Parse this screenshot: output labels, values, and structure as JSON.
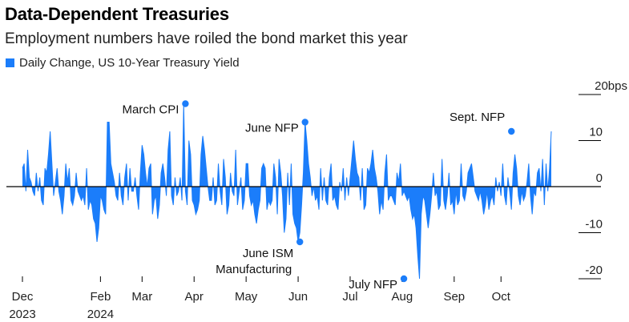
{
  "header": {
    "title": "Data-Dependent Treasuries",
    "subtitle": "Employment numbers have roiled the bond market this year"
  },
  "colors": {
    "series": "#1b7dfa",
    "axis": "#000000",
    "grid": "#000000",
    "text": "#222222"
  },
  "chart_data": {
    "type": "area",
    "series": [
      {
        "name": "Daily Change, US 10-Year Treasury Yield",
        "x_start": "2023-12-01",
        "y": [
          4,
          5,
          -1,
          8,
          2,
          1,
          -1,
          -2,
          3,
          -1,
          2,
          -3,
          -4,
          4,
          3,
          7,
          12,
          5,
          -2,
          1,
          4,
          -1,
          -3,
          -6,
          -2,
          5,
          1,
          4,
          -3,
          -4,
          -2,
          3,
          -1,
          -2,
          -3,
          -2,
          -4,
          4,
          -5,
          -3,
          -4,
          -7,
          -8,
          -12,
          -9,
          -2,
          -3,
          -5,
          -6,
          14,
          14,
          5,
          3,
          1,
          -2,
          -3,
          3,
          -2,
          -4,
          2,
          5,
          -3,
          4,
          -1,
          -1,
          2,
          -2,
          -5,
          3,
          9,
          7,
          3,
          0,
          4,
          5,
          -6,
          -3,
          -2,
          -7,
          -4,
          3,
          5,
          2,
          -2,
          8,
          12,
          -2,
          -4,
          2,
          -2,
          -1,
          2,
          -3,
          18,
          -1,
          -4,
          10,
          7,
          -3,
          -4,
          -6,
          -5,
          -3,
          7,
          11,
          8,
          4,
          0,
          -3,
          -3,
          2,
          -4,
          -3,
          5,
          -1,
          -4,
          6,
          2,
          -6,
          -4,
          3,
          -1,
          -2,
          8,
          -4,
          -1,
          2,
          -5,
          -3,
          5,
          5,
          -2,
          -4,
          -3,
          -6,
          -8,
          -5,
          -3,
          4,
          5,
          4,
          -5,
          -3,
          -4,
          -3,
          5,
          2,
          -6,
          6,
          3,
          -2,
          -10,
          -7,
          3,
          -4,
          5,
          -6,
          -8,
          -9,
          -12,
          -10,
          -4,
          3,
          14,
          10,
          5,
          2,
          -2,
          0,
          -3,
          -2,
          -5,
          4,
          -3,
          2,
          -3,
          -4,
          2,
          5,
          -3,
          -2,
          -4,
          -5,
          1,
          -1,
          4,
          -3,
          2,
          -2,
          2,
          6,
          10,
          6,
          3,
          2,
          -3,
          4,
          -5,
          -4,
          4,
          3,
          5,
          8,
          4,
          2,
          -1,
          -6,
          -3,
          -5,
          3,
          7,
          -3,
          -2,
          -2,
          -3,
          -4,
          3,
          1,
          5,
          -2,
          -1,
          -2,
          -3,
          -2,
          -5,
          -7,
          -6,
          -9,
          -15,
          -20,
          -6,
          -2,
          -3,
          -6,
          -9,
          -6,
          -2,
          3,
          -2,
          -1,
          -5,
          -4,
          6,
          -3,
          -5,
          -2,
          3,
          -4,
          -3,
          -6,
          -1,
          -4,
          -3,
          5,
          -2,
          -3,
          -1,
          3,
          4,
          5,
          2,
          -1,
          -2,
          -3,
          -1,
          -3,
          -6,
          -4,
          -1,
          -5,
          -3,
          -2,
          -4,
          2,
          -1,
          1,
          -2,
          5,
          -2,
          -4,
          2,
          -1,
          -5,
          3,
          7,
          4,
          -2,
          -4,
          -1,
          -3,
          -2,
          1,
          5,
          -2,
          -6,
          -1,
          -2,
          3,
          4,
          -1,
          6,
          -4,
          5,
          -1,
          4,
          12
        ]
      }
    ],
    "y_unit_label": "20bps",
    "yticks": [
      20,
      10,
      0,
      -10,
      -20
    ],
    "ylim": [
      -20,
      20
    ],
    "grid": false,
    "x_labels": [
      {
        "month": "Dec",
        "year": "2023",
        "idx": 0
      },
      {
        "month": "Feb",
        "year": "2024",
        "idx": 45
      },
      {
        "month": "Mar",
        "year": "",
        "idx": 69
      },
      {
        "month": "Apr",
        "year": "",
        "idx": 99
      },
      {
        "month": "May",
        "year": "",
        "idx": 129
      },
      {
        "month": "Jun",
        "year": "",
        "idx": 159
      },
      {
        "month": "Jul",
        "year": "",
        "idx": 189
      },
      {
        "month": "Aug",
        "year": "",
        "idx": 219
      },
      {
        "month": "Sep",
        "year": "",
        "idx": 249
      },
      {
        "month": "Oct",
        "year": "",
        "idx": 276
      }
    ],
    "annotations": [
      {
        "label": "March CPI",
        "idx": 94,
        "value": 18,
        "side": "left"
      },
      {
        "label": "June NFP",
        "idx": 163,
        "value": 14,
        "side": "left"
      },
      {
        "label": "June ISM",
        "label2": "Manufacturing",
        "idx": 160,
        "value": -12,
        "side": "below-left"
      },
      {
        "label": "July NFP",
        "idx": 220,
        "value": -20,
        "side": "left"
      },
      {
        "label": "Sept. NFP",
        "idx": 282,
        "value": 12,
        "side": "left-up"
      }
    ]
  }
}
